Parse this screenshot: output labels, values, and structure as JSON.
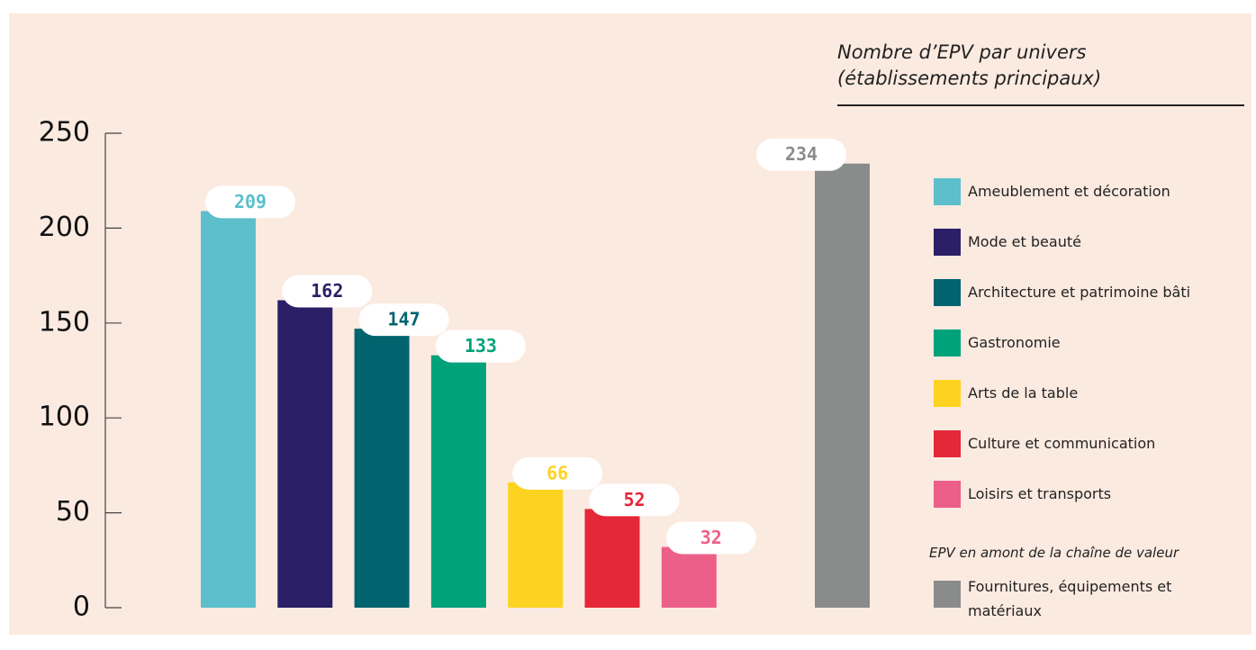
{
  "chart_data": {
    "type": "bar",
    "title": "Nombre d’EPV par univers (établissements principaux)",
    "categories": [
      "Ameublement et décoration",
      "Mode et beauté",
      "Architecture et patrimoine bâti",
      "Gastronomie",
      "Arts de la table",
      "Culture et communication",
      "Loisirs et transports",
      "Fournitures, équipements et matériaux"
    ],
    "values": [
      209,
      162,
      147,
      133,
      66,
      52,
      32,
      234
    ],
    "colors": [
      "#5cbfcb",
      "#2b1f68",
      "#00636e",
      "#00a27a",
      "#fdd321",
      "#e5273a",
      "#ec5f88",
      "#8a8c8b"
    ],
    "legend_note": "EPV en amont de la chaîne de valeur",
    "ylim": [
      0,
      250
    ],
    "yticks": [
      0,
      50,
      100,
      150,
      200,
      250
    ]
  }
}
